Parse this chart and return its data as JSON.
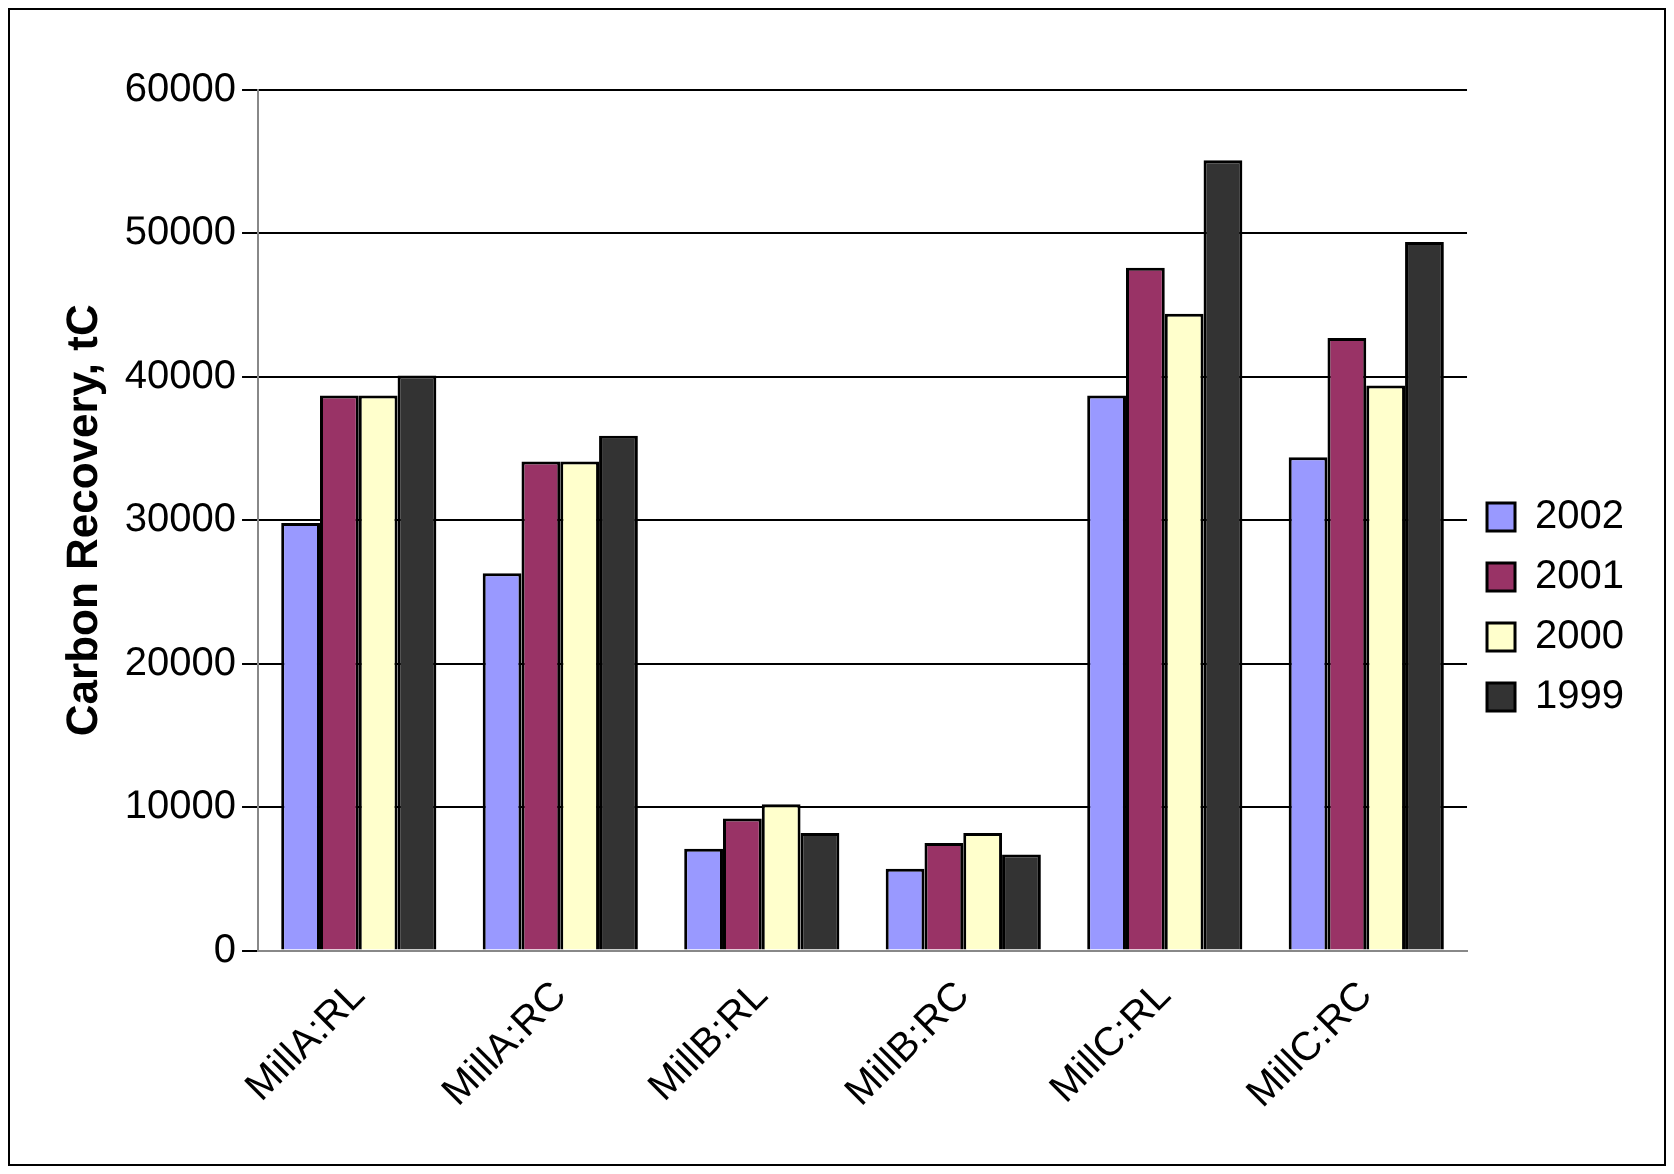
{
  "chart_data": {
    "type": "bar",
    "ylabel": "Carbon Recovery, tC",
    "categories": [
      "MillA:RL",
      "MillA:RC",
      "MillB:RL",
      "MillB:RC",
      "MillC:RL",
      "MillC:RC"
    ],
    "series": [
      {
        "name": "2002",
        "color": "#9999ff",
        "values": [
          29800,
          26300,
          7100,
          5700,
          38700,
          34400
        ]
      },
      {
        "name": "2001",
        "color": "#993366",
        "values": [
          38700,
          34100,
          9200,
          7500,
          47600,
          42700
        ]
      },
      {
        "name": "2000",
        "color": "#ffffcc",
        "values": [
          38700,
          34100,
          10200,
          8200,
          44400,
          39400
        ]
      },
      {
        "name": "1999",
        "color": "#333333",
        "values": [
          40100,
          35900,
          8200,
          6700,
          55100,
          49400
        ]
      }
    ],
    "ylim": [
      0,
      60000
    ],
    "yticks": [
      0,
      10000,
      20000,
      30000,
      40000,
      50000,
      60000
    ],
    "grid": "y",
    "legend": "right"
  }
}
